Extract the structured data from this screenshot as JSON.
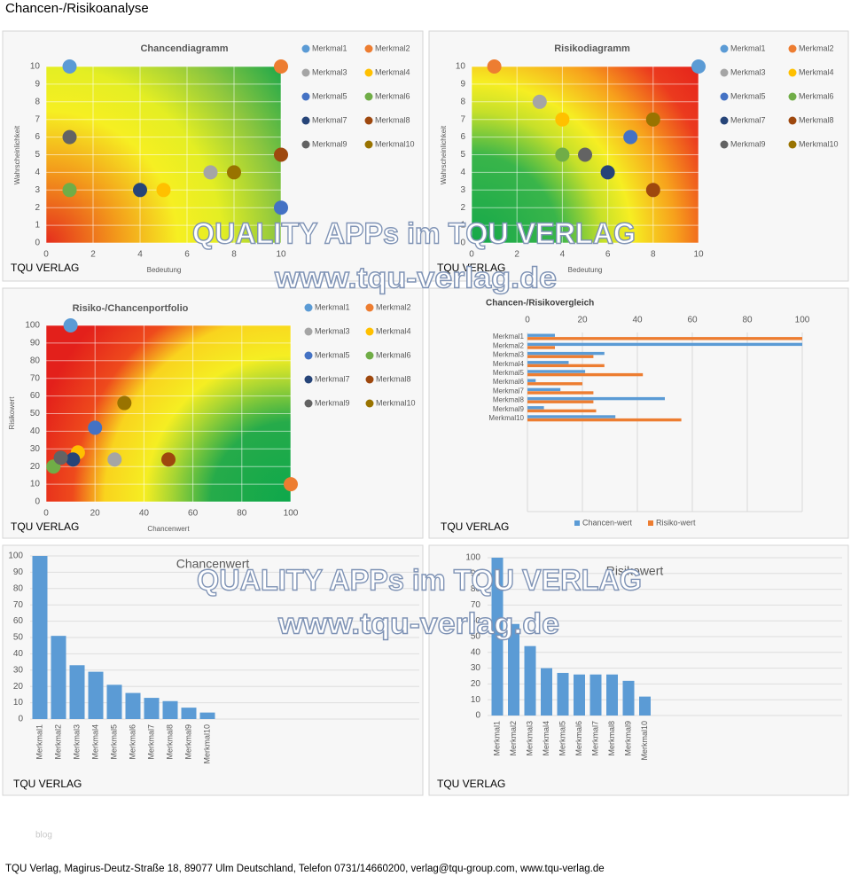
{
  "title": "Chancen-/Risikoanalyse",
  "watermark": [
    "QUALITY APPs im TQU VERLAG",
    "www.tqu-verlag.de"
  ],
  "blog": "blog",
  "footer": "TQU Verlag, Magirus-Deutz-Straße 18, 89077 Ulm Deutschland, Telefon 0731/14660200, verlag@tqu-group.com, www.tqu-verlag.de",
  "chart_data": [
    {
      "type": "scatter",
      "title": "Chancendiagramm",
      "xlabel": "Bedeutung",
      "ylabel": "Wahrscheinlichkeit",
      "source": "TQU VERLAG",
      "xlim": [
        0,
        10
      ],
      "ylim": [
        0,
        10
      ],
      "xticks": [
        0,
        2,
        4,
        6,
        8,
        10
      ],
      "yticks": [
        0,
        1,
        2,
        3,
        4,
        5,
        6,
        7,
        8,
        9,
        10
      ],
      "grid": true,
      "series": [
        {
          "name": "Merkmal1",
          "color": "#5b9bd5",
          "x": [
            1
          ],
          "values": [
            10
          ]
        },
        {
          "name": "Merkmal2",
          "color": "#ed7d31",
          "x": [
            10
          ],
          "values": [
            10
          ]
        },
        {
          "name": "Merkmal3",
          "color": "#a5a5a5",
          "x": [
            7
          ],
          "values": [
            4
          ]
        },
        {
          "name": "Merkmal4",
          "color": "#ffc000",
          "x": [
            5
          ],
          "values": [
            3
          ]
        },
        {
          "name": "Merkmal5",
          "color": "#4472c4",
          "x": [
            10
          ],
          "values": [
            2
          ]
        },
        {
          "name": "Merkmal6",
          "color": "#70ad47",
          "x": [
            1
          ],
          "values": [
            3
          ]
        },
        {
          "name": "Merkmal7",
          "color": "#264478",
          "x": [
            4
          ],
          "values": [
            3
          ]
        },
        {
          "name": "Merkmal8",
          "color": "#9e480e",
          "x": [
            10
          ],
          "values": [
            5
          ]
        },
        {
          "name": "Merkmal9",
          "color": "#636363",
          "x": [
            1
          ],
          "values": [
            6
          ]
        },
        {
          "name": "Merkmal10",
          "color": "#997300",
          "x": [
            8
          ],
          "values": [
            4
          ]
        }
      ]
    },
    {
      "type": "scatter",
      "title": "Risikodiagramm",
      "xlabel": "Bedeutung",
      "ylabel": "Wahrscheinlichkeit",
      "source": "TQU VERLAG",
      "xlim": [
        0,
        10
      ],
      "ylim": [
        0,
        10
      ],
      "xticks": [
        0,
        2,
        4,
        6,
        8,
        10
      ],
      "yticks": [
        0,
        1,
        2,
        3,
        4,
        5,
        6,
        7,
        8,
        9,
        10
      ],
      "grid": true,
      "series": [
        {
          "name": "Merkmal1",
          "color": "#5b9bd5",
          "x": [
            10
          ],
          "values": [
            10
          ]
        },
        {
          "name": "Merkmal2",
          "color": "#ed7d31",
          "x": [
            1
          ],
          "values": [
            10
          ]
        },
        {
          "name": "Merkmal3",
          "color": "#a5a5a5",
          "x": [
            3
          ],
          "values": [
            8
          ]
        },
        {
          "name": "Merkmal4",
          "color": "#ffc000",
          "x": [
            4
          ],
          "values": [
            7
          ]
        },
        {
          "name": "Merkmal5",
          "color": "#4472c4",
          "x": [
            7
          ],
          "values": [
            6
          ]
        },
        {
          "name": "Merkmal6",
          "color": "#70ad47",
          "x": [
            4
          ],
          "values": [
            5
          ]
        },
        {
          "name": "Merkmal7",
          "color": "#264478",
          "x": [
            6
          ],
          "values": [
            4
          ]
        },
        {
          "name": "Merkmal8",
          "color": "#9e480e",
          "x": [
            8
          ],
          "values": [
            3
          ]
        },
        {
          "name": "Merkmal9",
          "color": "#636363",
          "x": [
            5
          ],
          "values": [
            5
          ]
        },
        {
          "name": "Merkmal10",
          "color": "#997300",
          "x": [
            8
          ],
          "values": [
            7
          ]
        }
      ]
    },
    {
      "type": "scatter",
      "title": "Risiko-/Chancenportfolio",
      "xlabel": "Chancenwert",
      "ylabel": "Risikowert",
      "source": "TQU VERLAG",
      "xlim": [
        0,
        100
      ],
      "ylim": [
        0,
        100
      ],
      "xticks": [
        0,
        20,
        40,
        60,
        80,
        100
      ],
      "yticks": [
        0,
        10,
        20,
        30,
        40,
        50,
        60,
        70,
        80,
        90,
        100
      ],
      "grid": true,
      "series": [
        {
          "name": "Merkmal1",
          "color": "#5b9bd5",
          "x": [
            10
          ],
          "values": [
            100
          ]
        },
        {
          "name": "Merkmal2",
          "color": "#ed7d31",
          "x": [
            100
          ],
          "values": [
            10
          ]
        },
        {
          "name": "Merkmal3",
          "color": "#a5a5a5",
          "x": [
            28
          ],
          "values": [
            24
          ]
        },
        {
          "name": "Merkmal4",
          "color": "#ffc000",
          "x": [
            13
          ],
          "values": [
            28
          ]
        },
        {
          "name": "Merkmal5",
          "color": "#4472c4",
          "x": [
            20
          ],
          "values": [
            42
          ]
        },
        {
          "name": "Merkmal6",
          "color": "#70ad47",
          "x": [
            3
          ],
          "values": [
            20
          ]
        },
        {
          "name": "Merkmal7",
          "color": "#264478",
          "x": [
            11
          ],
          "values": [
            24
          ]
        },
        {
          "name": "Merkmal8",
          "color": "#9e480e",
          "x": [
            50
          ],
          "values": [
            24
          ]
        },
        {
          "name": "Merkmal9",
          "color": "#636363",
          "x": [
            6
          ],
          "values": [
            25
          ]
        },
        {
          "name": "Merkmal10",
          "color": "#997300",
          "x": [
            32
          ],
          "values": [
            56
          ]
        }
      ]
    },
    {
      "type": "hbar",
      "title": "Chancen-/Risikovergleich",
      "source": "TQU VERLAG",
      "categories": [
        "Merkmal1",
        "Merkmal2",
        "Merkmal3",
        "Merkmal4",
        "Merkmal5",
        "Merkmal6",
        "Merkmal7",
        "Merkmal8",
        "Merkmal9",
        "Merkmal10"
      ],
      "xlim": [
        0,
        100
      ],
      "xticks": [
        0,
        20,
        40,
        60,
        80,
        100
      ],
      "grid": true,
      "series": [
        {
          "name": "Chancen-wert",
          "color": "#5b9bd5",
          "values": [
            10,
            100,
            28,
            15,
            21,
            3,
            12,
            50,
            6,
            32
          ]
        },
        {
          "name": "Risiko-wert",
          "color": "#ed7d31",
          "values": [
            100,
            10,
            24,
            28,
            42,
            20,
            24,
            24,
            25,
            56
          ]
        }
      ]
    },
    {
      "type": "bar",
      "title": "Chancenwert",
      "source": "TQU VERLAG",
      "color": "#5b9bd5",
      "categories": [
        "Merkmal1",
        "Merkmal2",
        "Merkmal3",
        "Merkmal4",
        "Merkmal5",
        "Merkmal6",
        "Merkmal7",
        "Merkmal8",
        "Merkmal9",
        "Merkmal10"
      ],
      "values": [
        100,
        51,
        33,
        29,
        21,
        16,
        13,
        11,
        7,
        4
      ],
      "ylim": [
        0,
        100
      ],
      "yticks": [
        0,
        10,
        20,
        30,
        40,
        50,
        60,
        70,
        80,
        90,
        100
      ],
      "grid": true
    },
    {
      "type": "bar",
      "title": "Risikowert",
      "source": "TQU VERLAG",
      "color": "#5b9bd5",
      "categories": [
        "Merkmal1",
        "Merkmal2",
        "Merkmal3",
        "Merkmal4",
        "Merkmal5",
        "Merkmal6",
        "Merkmal7",
        "Merkmal8",
        "Merkmal9",
        "Merkmal10"
      ],
      "values": [
        100,
        58,
        44,
        30,
        27,
        26,
        26,
        26,
        22,
        12
      ],
      "ylim": [
        0,
        100
      ],
      "yticks": [
        0,
        10,
        20,
        30,
        40,
        50,
        60,
        70,
        80,
        90,
        100
      ],
      "grid": true
    }
  ]
}
